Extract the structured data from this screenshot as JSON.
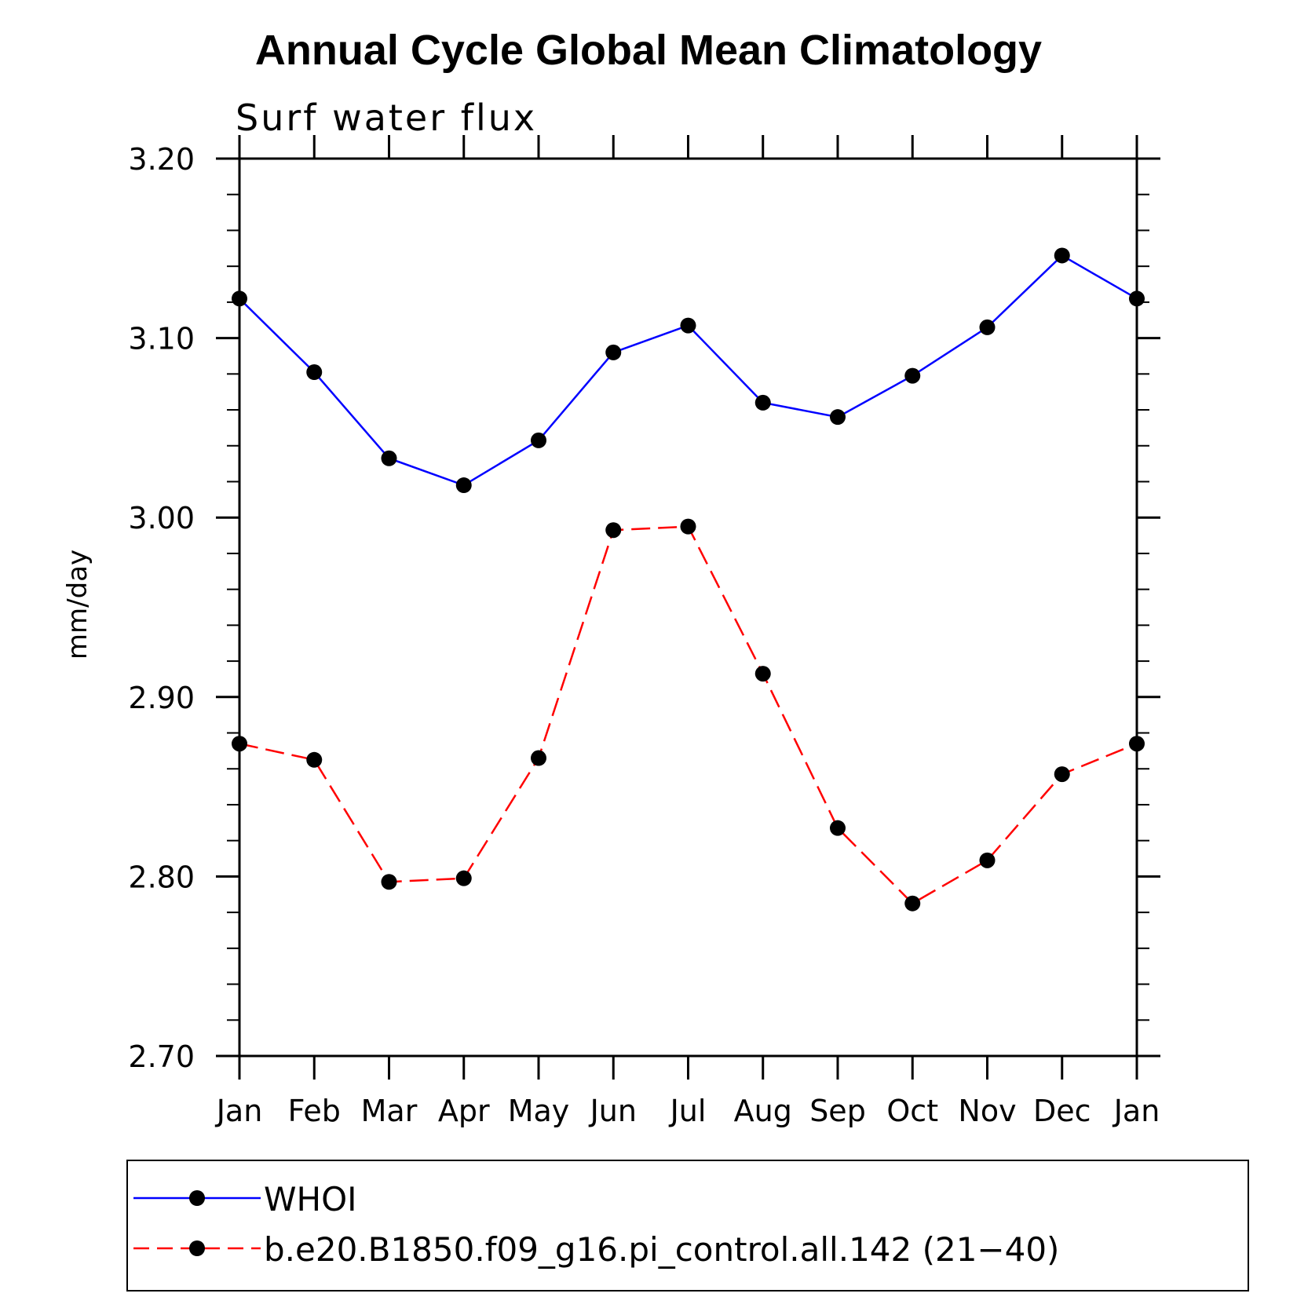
{
  "chart_data": {
    "type": "line",
    "title": "Annual Cycle Global Mean Climatology",
    "subtitle": "Surf water flux",
    "ylabel": "mm/day",
    "xlabel": "",
    "categories": [
      "Jan",
      "Feb",
      "Mar",
      "Apr",
      "May",
      "Jun",
      "Jul",
      "Aug",
      "Sep",
      "Oct",
      "Nov",
      "Dec",
      "Jan"
    ],
    "ylim": [
      2.7,
      3.2
    ],
    "yticks": [
      "2.70",
      "2.80",
      "2.90",
      "3.00",
      "3.10",
      "3.20"
    ],
    "legend_placement": "bottom",
    "series": [
      {
        "name": "WHOI",
        "color": "#0000ff",
        "line_style": "solid",
        "marker": "filled-circle",
        "values": [
          3.122,
          3.081,
          3.033,
          3.018,
          3.043,
          3.092,
          3.107,
          3.064,
          3.056,
          3.079,
          3.106,
          3.146,
          3.122
        ]
      },
      {
        "name": "b.e20.B1850.f09_g16.pi_control.all.142 (21−40)",
        "color": "#ff0000",
        "line_style": "dashed",
        "marker": "filled-circle",
        "values": [
          2.874,
          2.865,
          2.797,
          2.799,
          2.866,
          2.993,
          2.995,
          2.913,
          2.827,
          2.785,
          2.809,
          2.857,
          2.874
        ]
      }
    ]
  }
}
